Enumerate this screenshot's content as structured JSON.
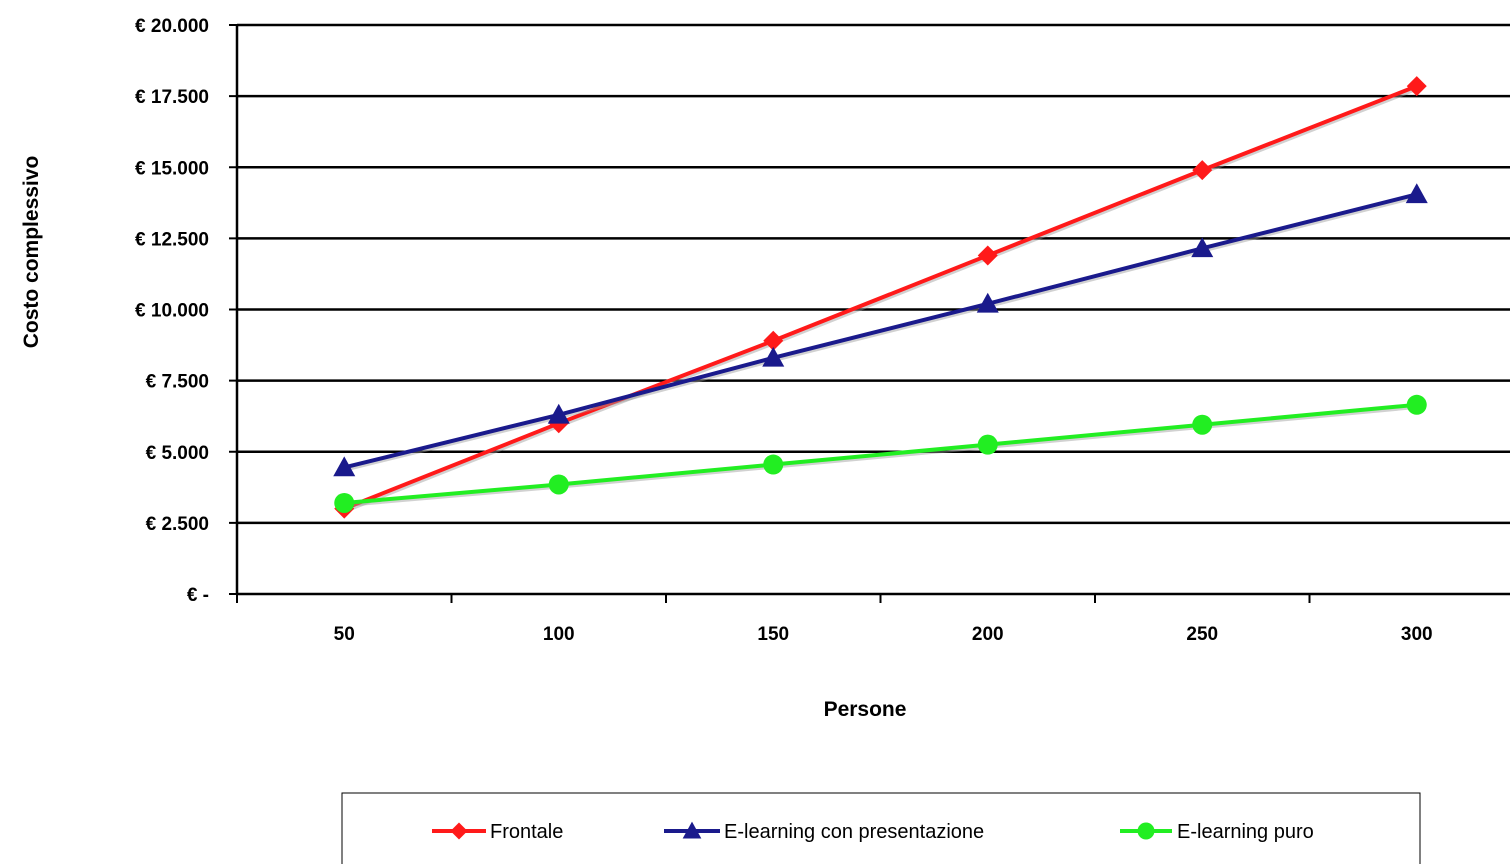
{
  "chart_data": {
    "type": "line",
    "title": "",
    "xlabel": "Persone",
    "ylabel": "Costo complessivo",
    "x": [
      50,
      100,
      150,
      200,
      250,
      300
    ],
    "x_tick_labels": [
      "50",
      "100",
      "150",
      "200",
      "250",
      "300"
    ],
    "ylim": [
      0,
      20000
    ],
    "y_ticks": [
      0,
      2500,
      5000,
      7500,
      10000,
      12500,
      15000,
      17500,
      20000
    ],
    "y_tick_labels": [
      "€ -",
      "€ 2.500",
      "€ 5.000",
      "€ 7.500",
      "€ 10.000",
      "€ 12.500",
      "€ 15.000",
      "€ 17.500",
      "€ 20.000"
    ],
    "grid": true,
    "legend_position": "bottom",
    "series": [
      {
        "name": "Frontale",
        "color": "#ff1a1a",
        "marker": "diamond",
        "values": [
          3000,
          6000,
          8900,
          11900,
          14900,
          17850
        ]
      },
      {
        "name": "E-learning con presentazione",
        "color": "#1a1a8c",
        "marker": "triangle",
        "values": [
          4450,
          6300,
          8300,
          10200,
          12150,
          14050
        ]
      },
      {
        "name": "E-learning puro",
        "color": "#22ee22",
        "marker": "circle",
        "values": [
          3200,
          3850,
          4550,
          5250,
          5950,
          6650
        ]
      }
    ]
  }
}
